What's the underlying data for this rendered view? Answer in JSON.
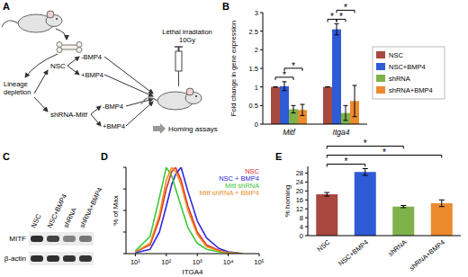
{
  "panel_labels": [
    "A",
    "B",
    "C",
    "D",
    "E"
  ],
  "diagram": {
    "start": [
      "Lineage",
      "depletion"
    ],
    "branches": [
      {
        "label": "NSC",
        "arms": [
          "-BMP4",
          "+BMP4"
        ]
      },
      {
        "label": "shRNA-Mitf",
        "arms": [
          "-BMP4",
          "+BMP4"
        ]
      }
    ],
    "treatment": [
      "Lethal irradiation",
      "10Gy"
    ],
    "assay": "Homing assays"
  },
  "blot": {
    "lanes": [
      "NSC",
      "NSC+BMP4",
      "shRNA",
      "shRNA+BMP4"
    ],
    "rows": [
      {
        "label": "MITF",
        "intensity": [
          0.9,
          0.8,
          0.5,
          0.55
        ]
      },
      {
        "label": "β-actin",
        "intensity": [
          0.9,
          0.9,
          0.88,
          0.88
        ]
      }
    ]
  },
  "chart_data": [
    {
      "type": "bar",
      "ylabel": "Fold change in gene expression",
      "categories": [
        "Mitf",
        "Itga4"
      ],
      "series": [
        {
          "name": "NSC",
          "color": "#a8483f",
          "values": [
            1,
            1
          ],
          "errors": [
            0,
            0
          ]
        },
        {
          "name": "NSC+BMP4",
          "color": "#2f5bd6",
          "values": [
            1.02,
            2.55
          ],
          "errors": [
            0.12,
            0.15
          ]
        },
        {
          "name": "shRNA",
          "color": "#7fb24a",
          "values": [
            0.4,
            0.3
          ],
          "errors": [
            0.1,
            0.2
          ]
        },
        {
          "name": "shRNA+BMP4",
          "color": "#ec8a2e",
          "values": [
            0.38,
            0.62
          ],
          "errors": [
            0.15,
            0.42
          ]
        }
      ],
      "ylim": [
        0,
        3
      ],
      "yticks": [
        0,
        0.5,
        1,
        1.5,
        2,
        2.5,
        3
      ],
      "grid": false,
      "legend": "right",
      "significance": [
        {
          "category": 0,
          "pair": [
            0,
            2
          ],
          "label": "*"
        },
        {
          "category": 0,
          "pair": [
            1,
            3
          ],
          "label": "*"
        },
        {
          "category": 1,
          "pair": [
            0,
            1
          ],
          "label": "*"
        },
        {
          "category": 1,
          "pair": [
            1,
            2
          ],
          "label": "*"
        },
        {
          "category": 1,
          "pair": [
            1,
            3
          ],
          "label": "*"
        }
      ]
    },
    {
      "type": "line",
      "xlabel": "ITGA4",
      "ylabel": "% of Max",
      "log": "x",
      "tick_labels": "x",
      "grid": false,
      "legend": "upper right",
      "x": [
        10,
        30,
        60,
        100,
        150,
        200,
        300,
        500,
        1000,
        2000,
        5000,
        10000,
        30000
      ],
      "series": [
        {
          "name": "NSC",
          "color": "#e4262c",
          "values": [
            2,
            10,
            40,
            75,
            95,
            100,
            85,
            55,
            25,
            10,
            4,
            1,
            0
          ]
        },
        {
          "name": "NSC + BMP4",
          "color": "#2a2ad8",
          "values": [
            1,
            5,
            25,
            55,
            80,
            92,
            100,
            72,
            38,
            18,
            6,
            2,
            0
          ]
        },
        {
          "name": "Mitf shRNA",
          "color": "#3cc83c",
          "values": [
            3,
            20,
            65,
            100,
            90,
            75,
            55,
            30,
            12,
            5,
            2,
            1,
            0
          ]
        },
        {
          "name": "Mitf shRNA + BMP4",
          "color": "#e8901e",
          "values": [
            2,
            12,
            45,
            85,
            100,
            95,
            80,
            50,
            22,
            8,
            3,
            1,
            0
          ]
        }
      ],
      "xlim": [
        5,
        100000
      ],
      "xticks": [
        {
          "value": 10,
          "label": "10¹"
        },
        {
          "value": 100,
          "label": "10²"
        },
        {
          "value": 1000,
          "label": "10³"
        },
        {
          "value": 10000,
          "label": "10⁴"
        },
        {
          "value": 100000,
          "label": "10⁵"
        }
      ],
      "ylim": [
        0,
        100
      ],
      "yticks": [
        0,
        25,
        50,
        75,
        100
      ]
    },
    {
      "type": "bar",
      "ylabel": "% homing",
      "categories": [
        "NSC",
        "NSC+BMP4",
        "shRNA",
        "shRNA+BMP4"
      ],
      "values": [
        18.5,
        28.5,
        13,
        14.5
      ],
      "errors": [
        0.8,
        1.5,
        0.5,
        1.5
      ],
      "colors": [
        "#a8483f",
        "#2f5bd6",
        "#7fb24a",
        "#ec8a2e"
      ],
      "ylim": [
        0,
        31
      ],
      "yticks": [
        0,
        4,
        8,
        12,
        16,
        20,
        24,
        28
      ],
      "grid": false,
      "significance": [
        {
          "pair": [
            0,
            1
          ],
          "label": "*"
        },
        {
          "pair": [
            0,
            3
          ],
          "label": "*"
        },
        {
          "pair": [
            0,
            2
          ],
          "label": "*"
        }
      ]
    }
  ]
}
